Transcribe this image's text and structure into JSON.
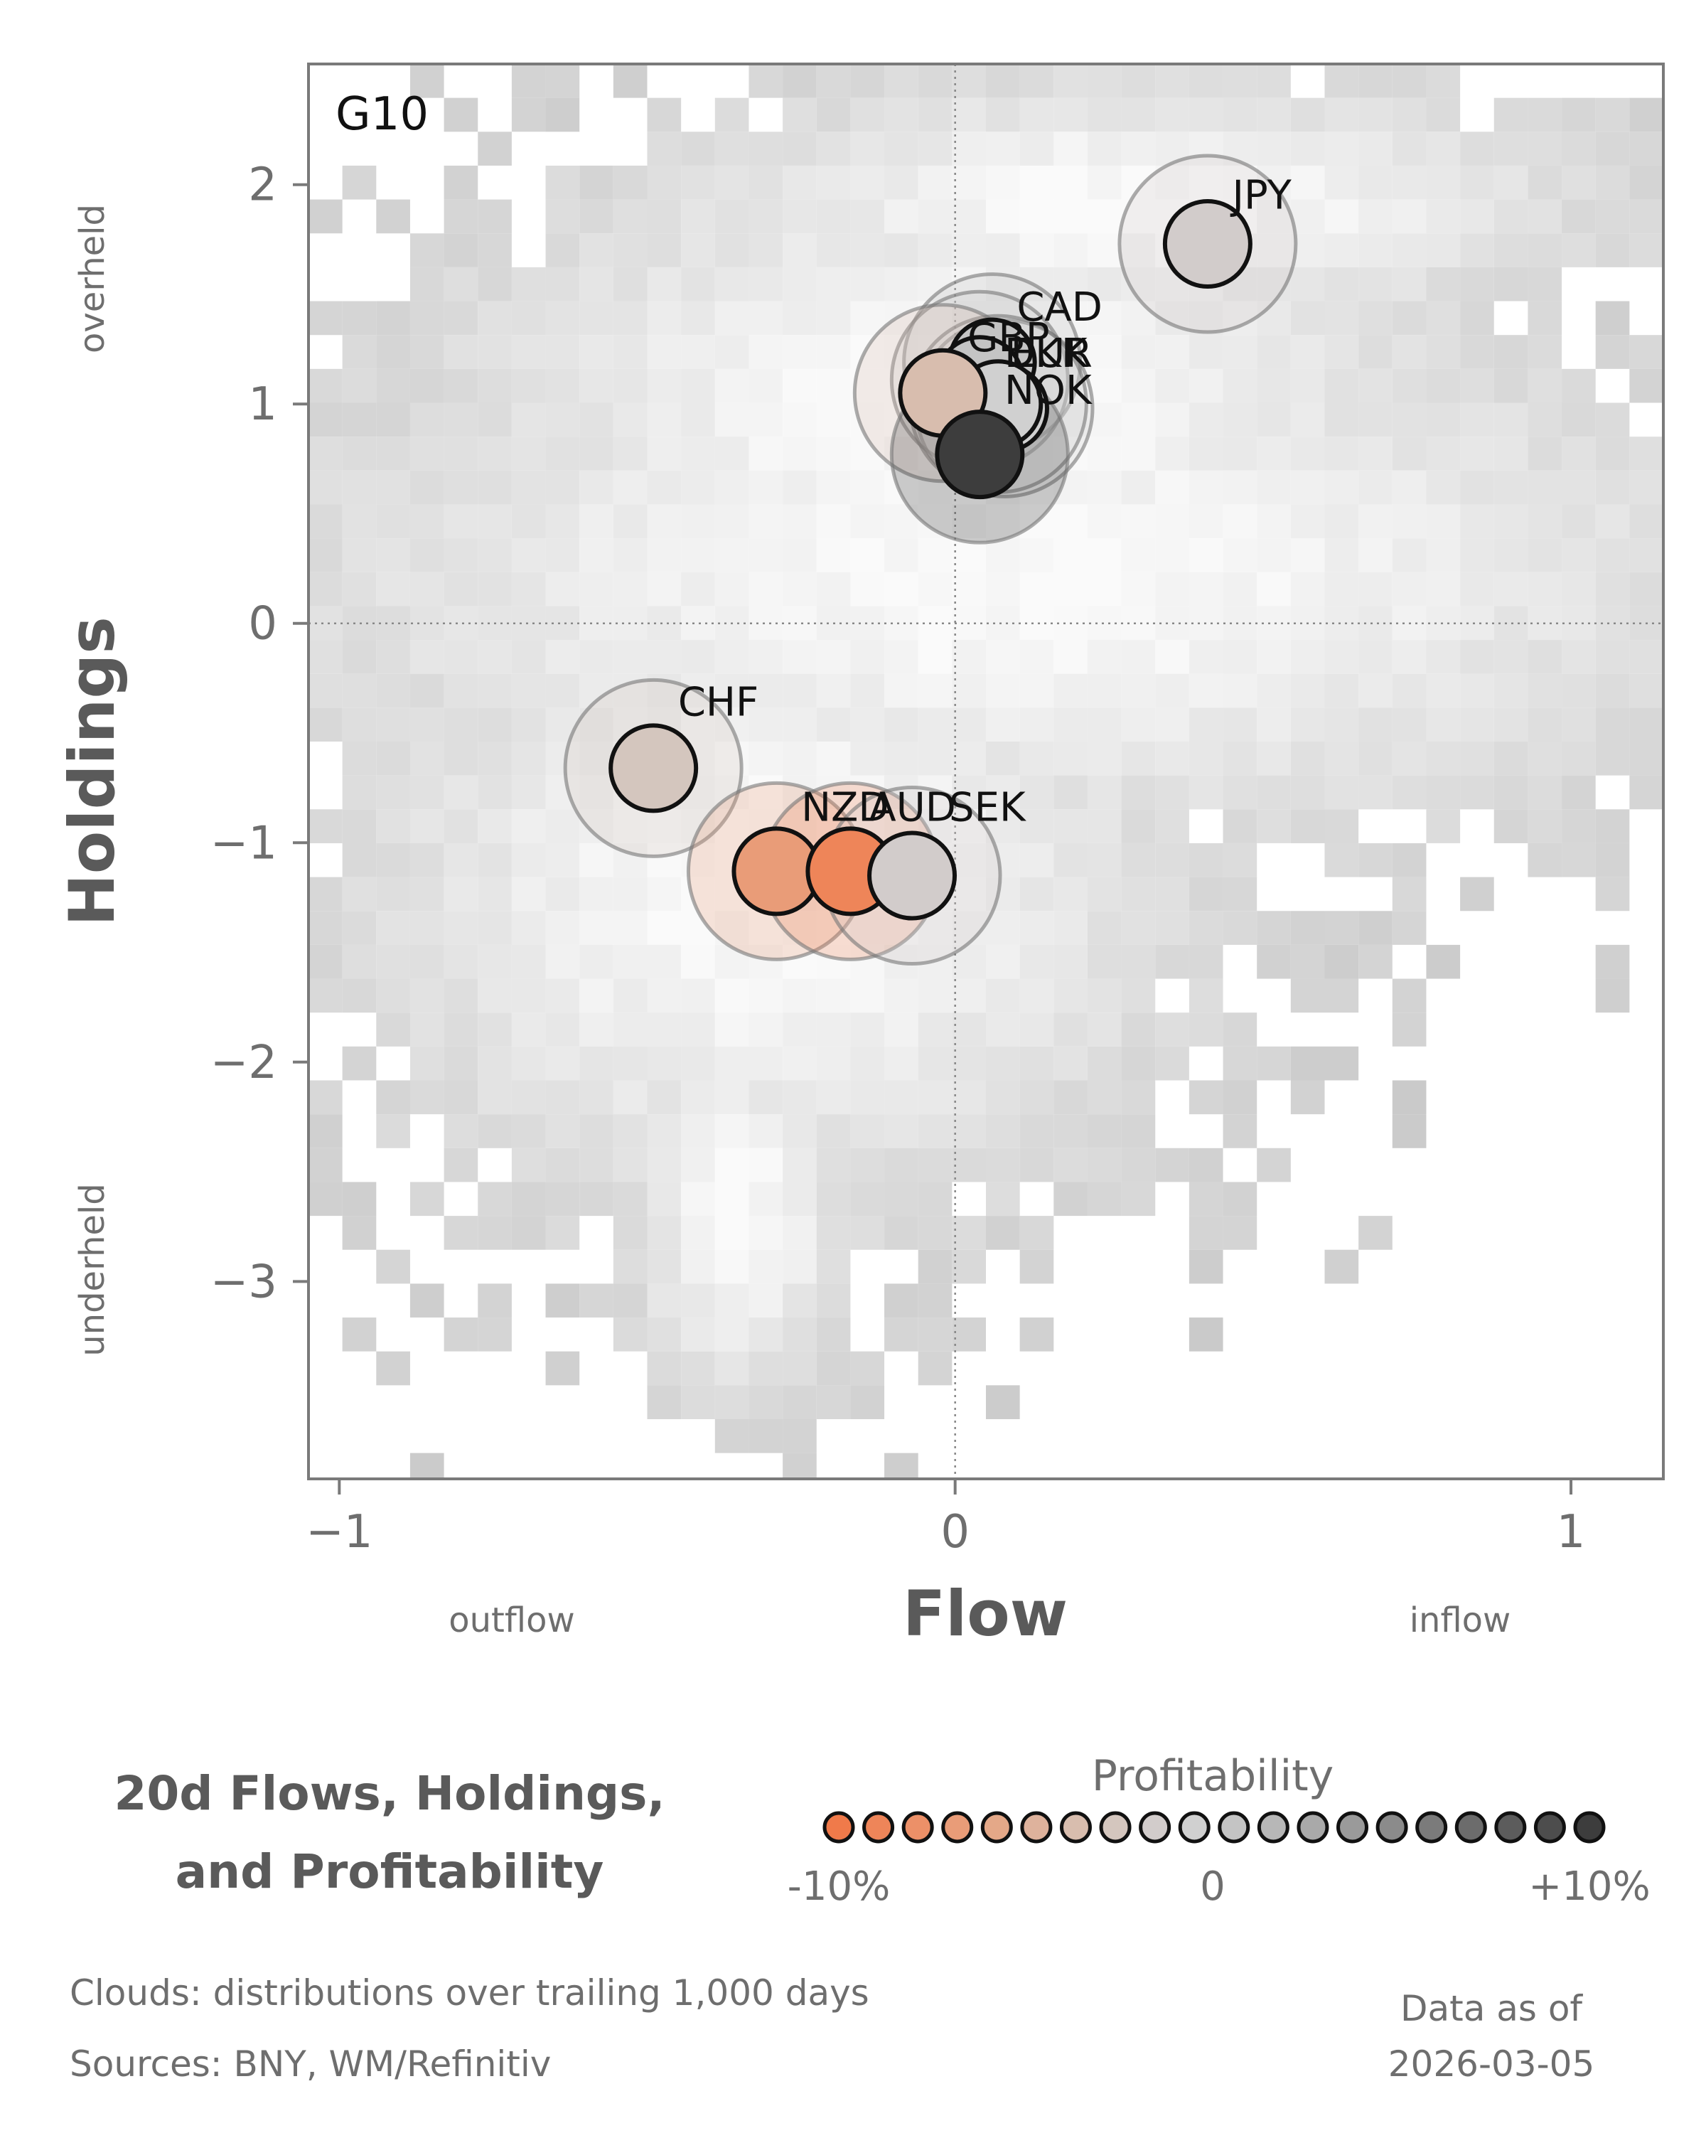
{
  "chart_data": {
    "type": "scatter",
    "panel_label": "G10",
    "xlabel": "Flow",
    "ylabel": "Holdings",
    "x_low_label": "outflow",
    "x_high_label": "inflow",
    "y_high_label": "overheld",
    "y_low_label": "underheld",
    "xlim": [
      -1.05,
      1.15
    ],
    "ylim": [
      -3.9,
      2.55
    ],
    "xticks": [
      -1,
      0,
      1
    ],
    "xtick_labels": [
      "−1",
      "0",
      "1"
    ],
    "yticks": [
      -3,
      -2,
      -1,
      0,
      1,
      2
    ],
    "ytick_labels": [
      "−3",
      "−2",
      "−1",
      "0",
      "1",
      "2"
    ],
    "reference_lines": {
      "x": 0,
      "y": 0
    },
    "background": "2D histogram clouds of trailing distributions (gray)",
    "points": [
      {
        "label": "JPY",
        "x": 0.41,
        "y": 1.73,
        "profitability": -1.5
      },
      {
        "label": "CAD",
        "x": 0.06,
        "y": 1.19,
        "profitability": 0.5
      },
      {
        "label": "GBP",
        "x": 0.04,
        "y": 1.11,
        "profitability": 0.0
      },
      {
        "label": "EUR",
        "x": 0.08,
        "y": 0.98,
        "profitability": -1.0
      },
      {
        "label": "DKK",
        "x": 0.07,
        "y": 1.0,
        "profitability": -1.0
      },
      {
        "label": "NOK",
        "x": -0.02,
        "y": 1.05,
        "profitability": -3.5
      },
      {
        "label": "NOK_outline",
        "x": 0.04,
        "y": 0.77,
        "profitability": 10.0,
        "hidden_label": true
      },
      {
        "label": "CHF",
        "x": -0.49,
        "y": -0.66,
        "profitability": -3.0
      },
      {
        "label": "NZD",
        "x": -0.29,
        "y": -1.13,
        "profitability": -7.0
      },
      {
        "label": "AUD",
        "x": -0.17,
        "y": -1.13,
        "profitability": -9.0
      },
      {
        "label": "SEK",
        "x": -0.07,
        "y": -1.15,
        "profitability": -2.0
      }
    ],
    "label_positions": {
      "JPY": [
        0.45,
        1.89
      ],
      "CAD": [
        0.1,
        1.38
      ],
      "GBP": [
        0.02,
        1.24
      ],
      "EUR": [
        0.09,
        1.17
      ],
      "DKK": [
        0.08,
        1.17
      ],
      "NOK": [
        0.08,
        1.0
      ],
      "CHF": [
        -0.45,
        -0.42
      ],
      "NZD": [
        -0.25,
        -0.9
      ],
      "AUD": [
        -0.14,
        -0.9
      ],
      "SEK": [
        -0.01,
        -0.9
      ]
    }
  },
  "legend": {
    "title_line1": "20d Flows, Holdings,",
    "title_line2": "and Profitability",
    "colorbar_title": "Profitability",
    "low_label": "-10%",
    "mid_label": "0",
    "high_label": "+10%",
    "colors": [
      "#f07a4a",
      "#ee8559",
      "#ec9068",
      "#e99c78",
      "#e4a888",
      "#deb29c",
      "#d8bdae",
      "#d4c6be",
      "#d2cccb",
      "#d0d0d0",
      "#c4c4c4",
      "#b7b7b7",
      "#a9a9a9",
      "#9a9a9a",
      "#8b8b8b",
      "#7b7b7b",
      "#6c6c6c",
      "#5c5c5c",
      "#4d4d4d",
      "#3d3d3d"
    ]
  },
  "footer": {
    "clouds_note": "Clouds:  distributions over trailing 1,000 days",
    "sources_note": "Sources:  BNY, WM/Refinitiv",
    "data_as_of_label": "Data as of",
    "data_as_of_date": "2026-03-05"
  }
}
